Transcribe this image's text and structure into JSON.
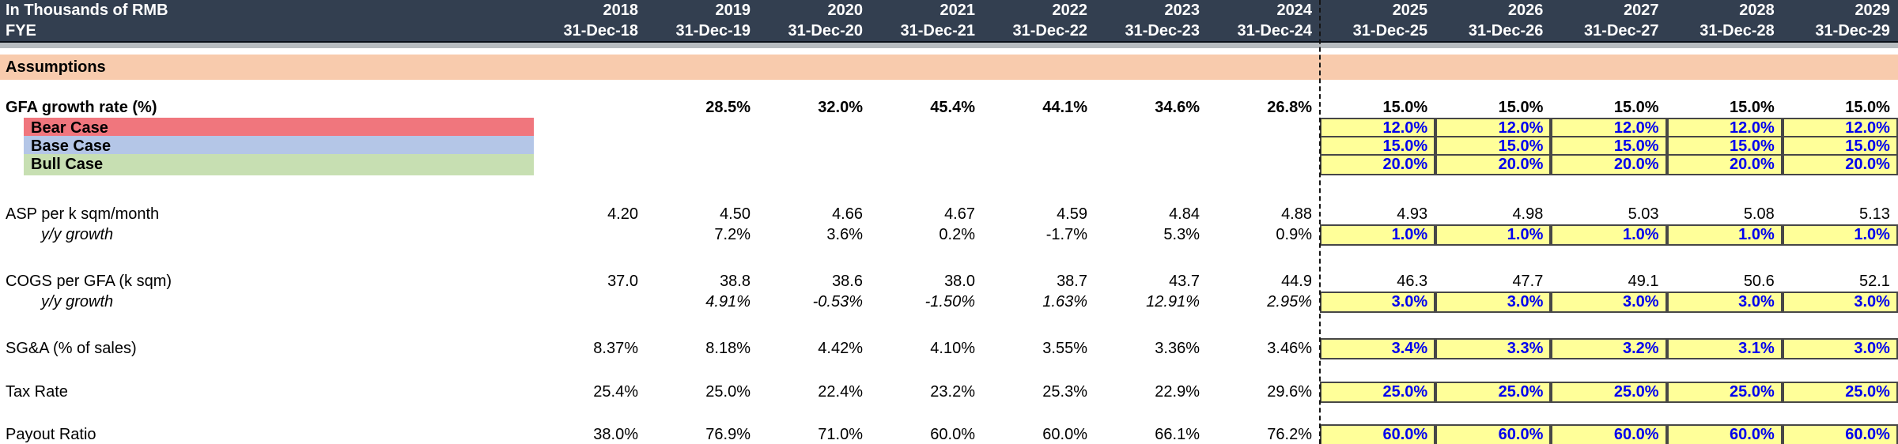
{
  "header": {
    "title_line1": "In Thousands of RMB",
    "title_line2": "FYE",
    "years": [
      "2018",
      "2019",
      "2020",
      "2021",
      "2022",
      "2023",
      "2024",
      "2025",
      "2026",
      "2027",
      "2028",
      "2029"
    ],
    "dates": [
      "31-Dec-18",
      "31-Dec-19",
      "31-Dec-20",
      "31-Dec-21",
      "31-Dec-22",
      "31-Dec-23",
      "31-Dec-24",
      "31-Dec-25",
      "31-Dec-26",
      "31-Dec-27",
      "31-Dec-28",
      "31-Dec-29"
    ]
  },
  "section_label": "Assumptions",
  "forecast_start_index": 7,
  "colors": {
    "header_bg": "#333F50",
    "header_text": "#FFFFFF",
    "strip": "#B7BCC0",
    "assumptions_bg": "#F8CBAD",
    "bear_bg": "#F0767D",
    "base_bg": "#B4C6E7",
    "bull_bg": "#C7DFB2",
    "input_bg": "#FFFF99",
    "input_border": "#474747",
    "input_text": "#0000EE"
  },
  "rows": [
    {
      "name": "gfa-growth-rate",
      "label": "GFA growth rate (%)",
      "style": "bold",
      "inputs": false,
      "values": [
        "",
        "28.5%",
        "32.0%",
        "45.4%",
        "44.1%",
        "34.6%",
        "26.8%",
        "15.0%",
        "15.0%",
        "15.0%",
        "15.0%",
        "15.0%"
      ]
    },
    {
      "name": "bear-case",
      "label": "Bear Case",
      "style": "case",
      "case_color": "bear_bg",
      "inputs": true,
      "values": [
        "",
        "",
        "",
        "",
        "",
        "",
        "",
        "12.0%",
        "12.0%",
        "12.0%",
        "12.0%",
        "12.0%"
      ]
    },
    {
      "name": "base-case",
      "label": "Base Case",
      "style": "case",
      "case_color": "base_bg",
      "inputs": true,
      "values": [
        "",
        "",
        "",
        "",
        "",
        "",
        "",
        "15.0%",
        "15.0%",
        "15.0%",
        "15.0%",
        "15.0%"
      ]
    },
    {
      "name": "bull-case",
      "label": "Bull Case",
      "style": "case",
      "case_color": "bull_bg",
      "inputs": true,
      "values": [
        "",
        "",
        "",
        "",
        "",
        "",
        "",
        "20.0%",
        "20.0%",
        "20.0%",
        "20.0%",
        "20.0%"
      ]
    },
    {
      "name": "asp",
      "label": "ASP per k sqm/month",
      "style": "normal",
      "inputs": false,
      "values": [
        "4.20",
        "4.50",
        "4.66",
        "4.67",
        "4.59",
        "4.84",
        "4.88",
        "4.93",
        "4.98",
        "5.03",
        "5.08",
        "5.13"
      ]
    },
    {
      "name": "asp-yy-growth",
      "label": "y/y growth",
      "style": "yy",
      "inputs": true,
      "values": [
        "",
        "7.2%",
        "3.6%",
        "0.2%",
        "-1.7%",
        "5.3%",
        "0.9%",
        "1.0%",
        "1.0%",
        "1.0%",
        "1.0%",
        "1.0%"
      ]
    },
    {
      "name": "cogs",
      "label": "COGS per GFA (k sqm)",
      "style": "normal",
      "inputs": false,
      "values": [
        "37.0",
        "38.8",
        "38.6",
        "38.0",
        "38.7",
        "43.7",
        "44.9",
        "46.3",
        "47.7",
        "49.1",
        "50.6",
        "52.1"
      ]
    },
    {
      "name": "cogs-yy-growth",
      "label": "y/y growth",
      "style": "yy",
      "italic_history": true,
      "inputs": true,
      "values": [
        "",
        "4.91%",
        "-0.53%",
        "-1.50%",
        "1.63%",
        "12.91%",
        "2.95%",
        "3.0%",
        "3.0%",
        "3.0%",
        "3.0%",
        "3.0%"
      ]
    },
    {
      "name": "sga",
      "label": "SG&A (% of sales)",
      "style": "normal",
      "inputs": true,
      "values": [
        "8.37%",
        "8.18%",
        "4.42%",
        "4.10%",
        "3.55%",
        "3.36%",
        "3.46%",
        "3.4%",
        "3.3%",
        "3.2%",
        "3.1%",
        "3.0%"
      ]
    },
    {
      "name": "tax-rate",
      "label": "Tax Rate",
      "style": "normal",
      "inputs": true,
      "values": [
        "25.4%",
        "25.0%",
        "22.4%",
        "23.2%",
        "25.3%",
        "22.9%",
        "29.6%",
        "25.0%",
        "25.0%",
        "25.0%",
        "25.0%",
        "25.0%"
      ]
    },
    {
      "name": "payout-ratio",
      "label": "Payout Ratio",
      "style": "normal",
      "inputs": true,
      "values": [
        "38.0%",
        "76.9%",
        "71.0%",
        "60.0%",
        "60.0%",
        "66.1%",
        "76.2%",
        "60.0%",
        "60.0%",
        "60.0%",
        "60.0%",
        "60.0%"
      ]
    }
  ]
}
